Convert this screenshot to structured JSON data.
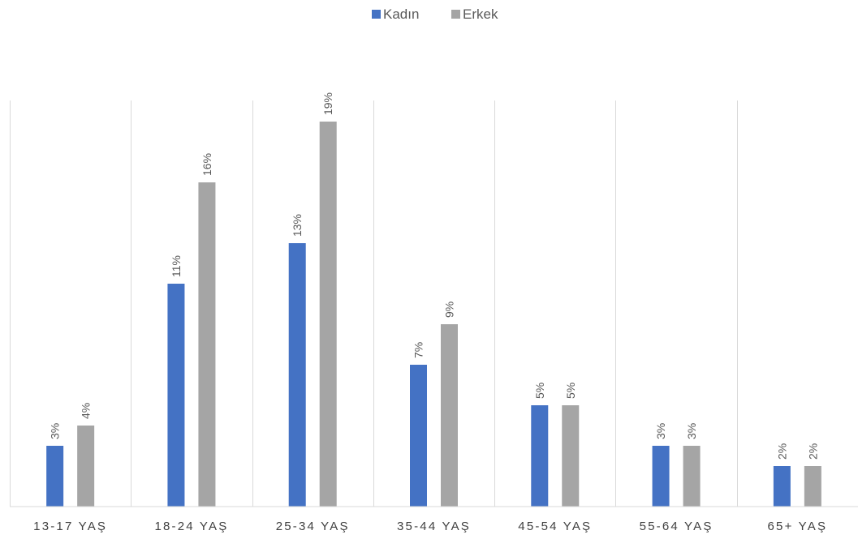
{
  "chart_data": {
    "type": "bar",
    "categories": [
      "13-17 YAŞ",
      "18-24 YAŞ",
      "25-34 YAŞ",
      "35-44 YAŞ",
      "45-54 YAŞ",
      "55-64 YAŞ",
      "65+ YAŞ"
    ],
    "series": [
      {
        "name": "Kadın",
        "color": "#4472c4",
        "values": [
          3,
          11,
          13,
          7,
          5,
          3,
          2
        ],
        "labels": [
          "3%",
          "11%",
          "13%",
          "7%",
          "5%",
          "3%",
          "2%"
        ]
      },
      {
        "name": "Erkek",
        "color": "#a5a5a5",
        "values": [
          4,
          16,
          19,
          9,
          5,
          3,
          2
        ],
        "labels": [
          "4%",
          "16%",
          "19%",
          "9%",
          "5%",
          "3%",
          "2%"
        ]
      }
    ],
    "ylim": [
      0,
      20
    ],
    "legend_position": "top-center",
    "gridlines": "vertical category separators"
  }
}
